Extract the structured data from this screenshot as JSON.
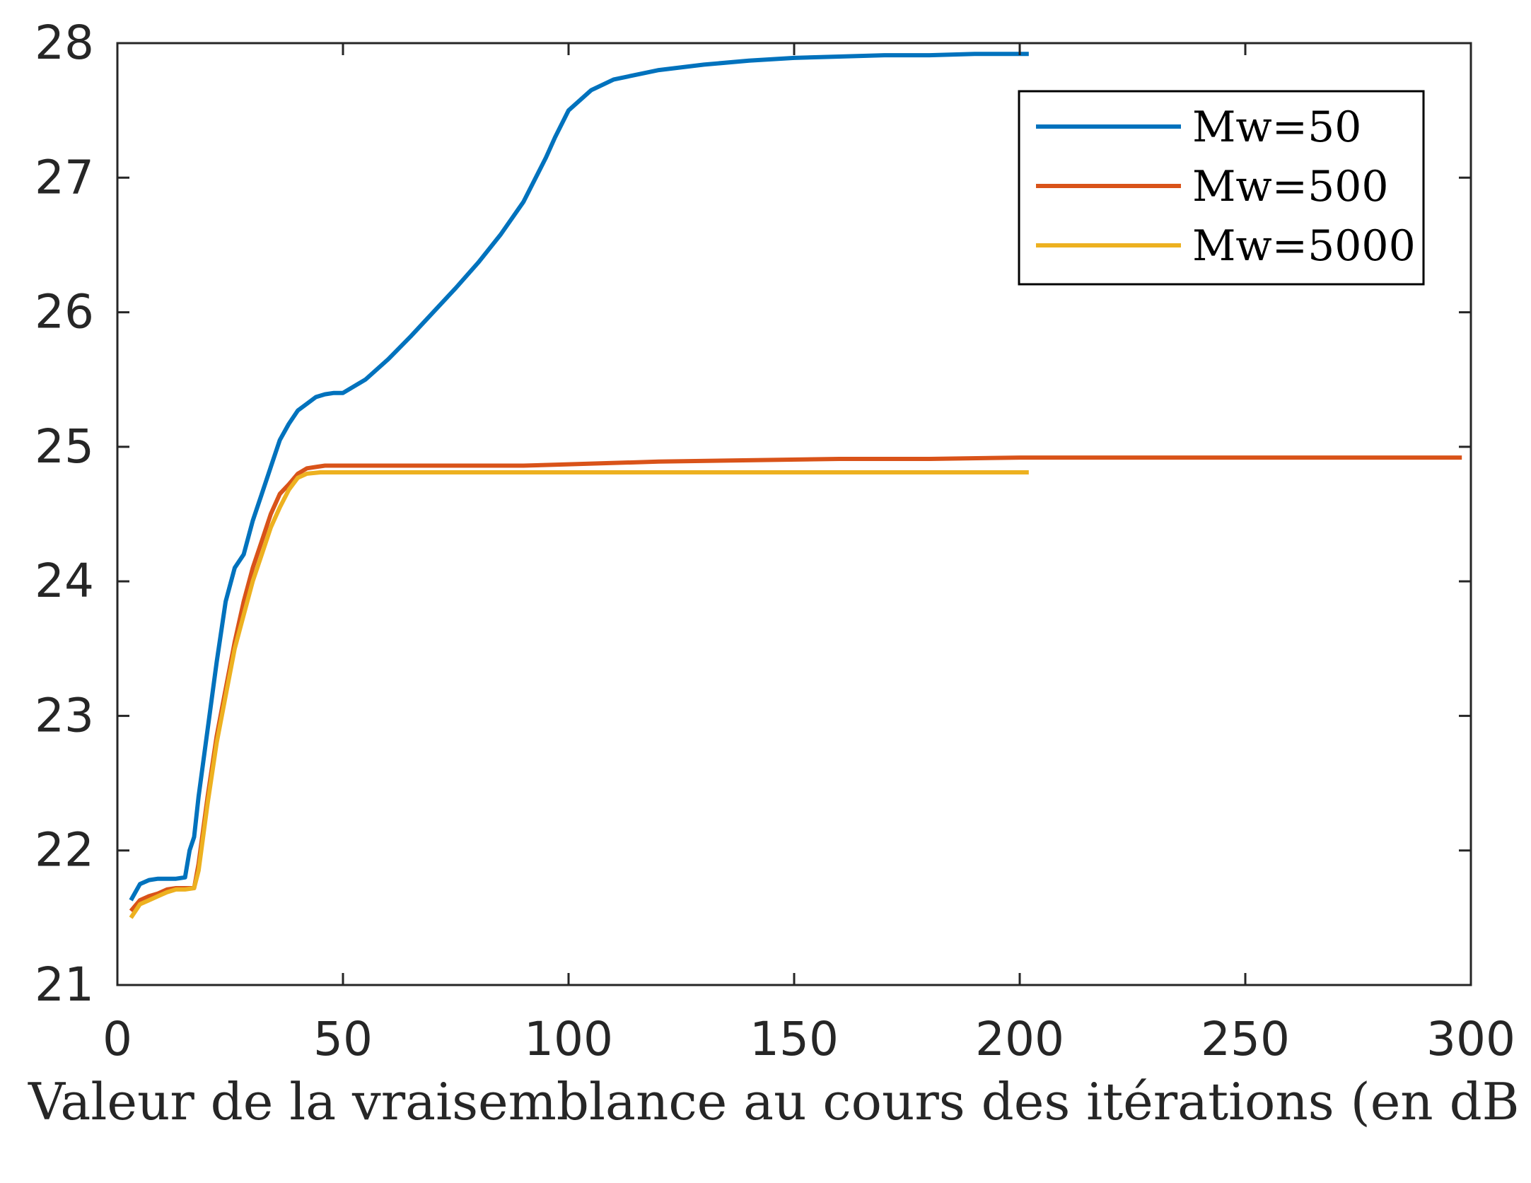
{
  "chart_data": {
    "type": "line",
    "title": "",
    "xlabel": "Valeur de la vraisemblance au cours des itérations (en dB",
    "ylabel": "",
    "xlim": [
      0,
      300
    ],
    "ylim": [
      21,
      28
    ],
    "xticks": [
      0,
      50,
      100,
      150,
      200,
      250,
      300
    ],
    "yticks": [
      21,
      22,
      23,
      24,
      25,
      26,
      27,
      28
    ],
    "xtick_labels": [
      "0",
      "50",
      "100",
      "150",
      "200",
      "250",
      "300"
    ],
    "ytick_labels": [
      "21",
      "22",
      "23",
      "24",
      "25",
      "26",
      "27",
      "28"
    ],
    "grid": false,
    "legend_position": "top-right",
    "series": [
      {
        "name": "Mw=50",
        "color": "#0072BD",
        "x": [
          3,
          5,
          7,
          9,
          11,
          13,
          15,
          16,
          17,
          18,
          20,
          22,
          24,
          26,
          28,
          30,
          32,
          34,
          36,
          38,
          40,
          42,
          44,
          46,
          48,
          50,
          55,
          60,
          65,
          70,
          75,
          80,
          85,
          90,
          95,
          97,
          100,
          105,
          110,
          120,
          130,
          140,
          150,
          160,
          170,
          180,
          190,
          200,
          202
        ],
        "y": [
          21.63,
          21.75,
          21.78,
          21.79,
          21.79,
          21.79,
          21.8,
          22.0,
          22.1,
          22.4,
          22.9,
          23.4,
          23.85,
          24.1,
          24.2,
          24.45,
          24.65,
          24.85,
          25.05,
          25.17,
          25.27,
          25.32,
          25.37,
          25.39,
          25.4,
          25.4,
          25.5,
          25.65,
          25.82,
          26.0,
          26.18,
          26.37,
          26.58,
          26.82,
          27.15,
          27.3,
          27.5,
          27.65,
          27.73,
          27.8,
          27.84,
          27.87,
          27.89,
          27.9,
          27.91,
          27.91,
          27.92,
          27.92,
          27.92
        ]
      },
      {
        "name": "Mw=500",
        "color": "#D95319",
        "x": [
          3,
          5,
          7,
          9,
          11,
          13,
          15,
          17,
          18,
          20,
          22,
          24,
          26,
          28,
          30,
          32,
          34,
          36,
          38,
          40,
          42,
          44,
          46,
          50,
          60,
          70,
          80,
          90,
          100,
          120,
          140,
          160,
          180,
          200,
          220,
          250,
          275,
          298
        ],
        "y": [
          21.55,
          21.63,
          21.66,
          21.68,
          21.71,
          21.72,
          21.72,
          21.72,
          21.9,
          22.4,
          22.85,
          23.2,
          23.55,
          23.85,
          24.1,
          24.3,
          24.5,
          24.65,
          24.72,
          24.8,
          24.84,
          24.85,
          24.86,
          24.86,
          24.86,
          24.86,
          24.86,
          24.86,
          24.87,
          24.89,
          24.9,
          24.91,
          24.91,
          24.92,
          24.92,
          24.92,
          24.92,
          24.92
        ]
      },
      {
        "name": "Mw=5000",
        "color": "#EDB120",
        "x": [
          3,
          5,
          7,
          9,
          11,
          13,
          15,
          17,
          18,
          20,
          22,
          24,
          26,
          28,
          30,
          32,
          34,
          36,
          38,
          40,
          42,
          45,
          50,
          60,
          80,
          100,
          120,
          140,
          160,
          180,
          202
        ],
        "y": [
          21.5,
          21.6,
          21.63,
          21.66,
          21.69,
          21.71,
          21.71,
          21.72,
          21.85,
          22.35,
          22.8,
          23.15,
          23.5,
          23.75,
          24.0,
          24.2,
          24.4,
          24.55,
          24.68,
          24.77,
          24.8,
          24.81,
          24.81,
          24.81,
          24.81,
          24.81,
          24.81,
          24.81,
          24.81,
          24.81,
          24.81
        ]
      }
    ]
  }
}
